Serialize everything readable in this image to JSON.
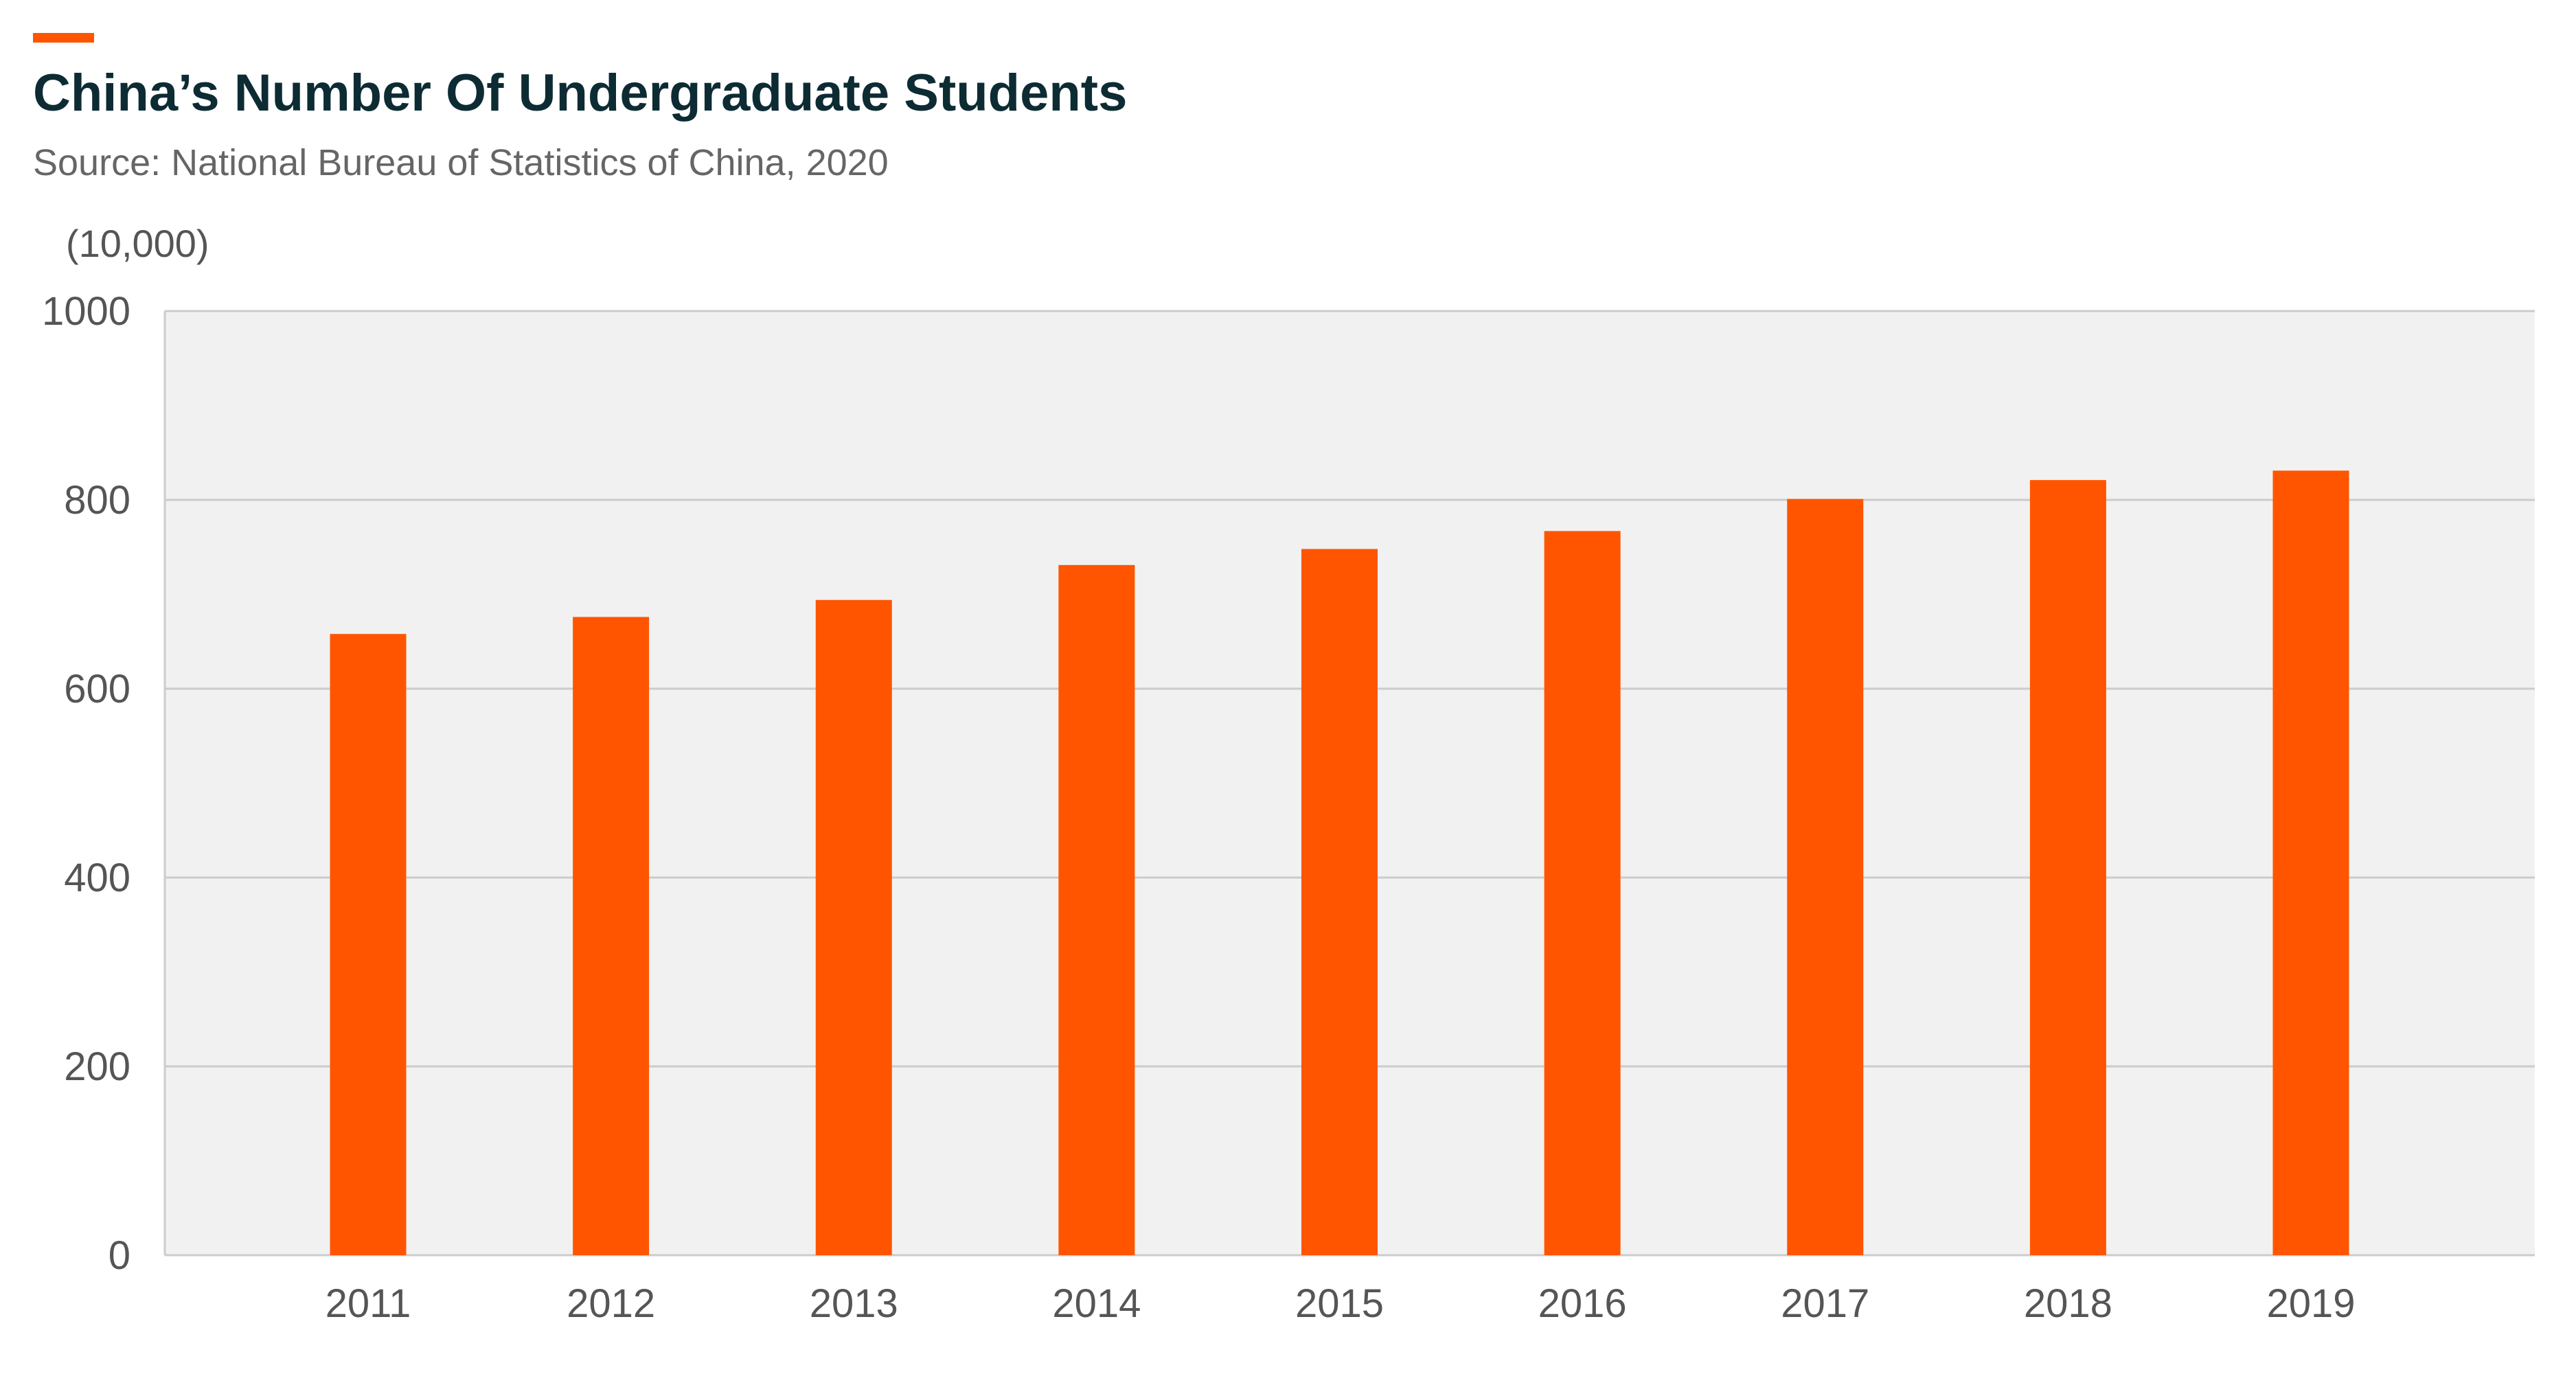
{
  "header": {
    "title": "China’s Number Of Undergraduate Students",
    "subtitle": "Source: National Bureau of Statistics of China, 2020"
  },
  "colors": {
    "accent": "#ff5500",
    "bar": "#ff5500",
    "title": "#0d2b33",
    "subtitle": "#666666",
    "plot_background": "#f1f1f1",
    "gridline": "#cccccc",
    "tick_label": "#555555"
  },
  "chart_data": {
    "type": "bar",
    "title": "China’s Number Of Undergraduate Students",
    "subtitle": "Source: National Bureau of Statistics of China, 2020",
    "unit_label": "(10,000)",
    "xlabel": "",
    "ylabel": "",
    "categories": [
      "2011",
      "2012",
      "2013",
      "2014",
      "2015",
      "2016",
      "2017",
      "2018",
      "2019"
    ],
    "values": [
      658,
      676,
      694,
      731,
      748,
      767,
      801,
      821,
      831
    ],
    "ylim": [
      0,
      1000
    ],
    "yticks": [
      0,
      200,
      400,
      600,
      800,
      1000
    ],
    "grid": true,
    "legend": "none"
  }
}
